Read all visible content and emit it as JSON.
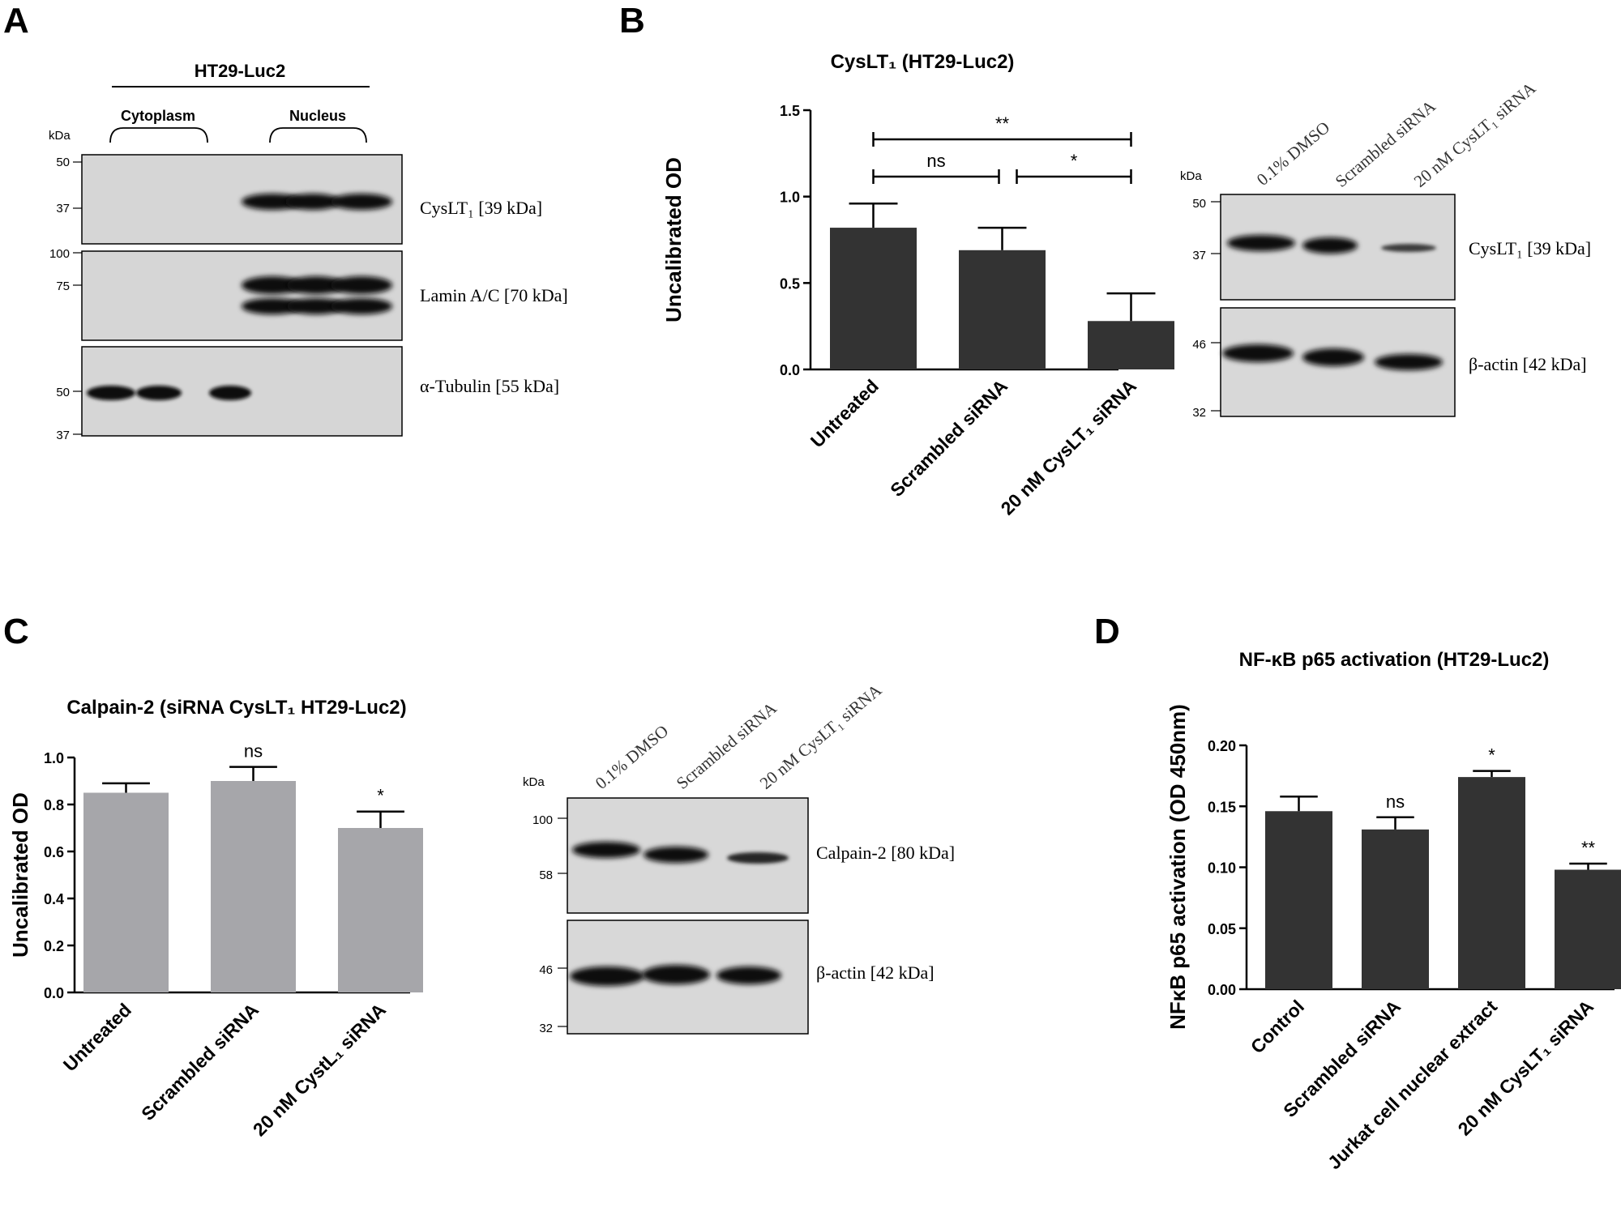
{
  "panels": {
    "a": {
      "label": "A",
      "cell_line": "HT29-Luc2",
      "fractions": [
        "Cytoplasm",
        "Nucleus"
      ],
      "kda_header": "kDa",
      "blots": [
        {
          "label": "CysLT₁ [39 kDa]",
          "markers": [
            "50",
            "37"
          ]
        },
        {
          "label": "Lamin A/C [70 kDa]",
          "markers": [
            "100",
            "75"
          ]
        },
        {
          "label": "α-Tubulin [55 kDa]",
          "markers": [
            "50",
            "37"
          ]
        }
      ]
    },
    "b": {
      "label": "B",
      "lanes": [
        "0.1% DMSO",
        "Scrambled siRNA",
        "20 nM CysLT₁ siRNA"
      ],
      "kda_header": "kDa",
      "blots": [
        {
          "label": "CysLT₁ [39 kDa]",
          "markers": [
            "50",
            "37"
          ]
        },
        {
          "label": "β-actin [42 kDa]",
          "markers": [
            "46",
            "32"
          ]
        }
      ]
    },
    "c": {
      "label": "C",
      "lanes": [
        "0.1% DMSO",
        "Scrambled siRNA",
        "20 nM CysLT₁ siRNA"
      ],
      "kda_header": "kDa",
      "blots": [
        {
          "label": "Calpain-2 [80 kDa]",
          "markers": [
            "100",
            "58"
          ]
        },
        {
          "label": "β-actin [42 kDa]",
          "markers": [
            "46",
            "32"
          ]
        }
      ]
    },
    "d": {
      "label": "D"
    }
  },
  "chart_data": [
    {
      "id": "b",
      "type": "bar",
      "title": "CysLT₁ (HT29-Luc2)",
      "ylabel": "Uncalibrated OD",
      "xlabel": "",
      "categories": [
        "Untreated",
        "Scrambled siRNA",
        "20 nM CysLT₁ siRNA"
      ],
      "values": [
        0.82,
        0.69,
        0.28
      ],
      "errors": [
        0.14,
        0.13,
        0.16
      ],
      "ylim": [
        0,
        1.5
      ],
      "yticks": [
        "0.0",
        "0.5",
        "1.0",
        "1.5"
      ],
      "bar_color": "#333333",
      "significance": [
        {
          "from": 0,
          "to": 2,
          "label": "**"
        },
        {
          "from": 0,
          "to": 1,
          "label": "ns"
        },
        {
          "from": 1,
          "to": 2,
          "label": "*"
        }
      ]
    },
    {
      "id": "c",
      "type": "bar",
      "title": "Calpain-2 (siRNA CysLT₁ HT29-Luc2)",
      "ylabel": "Uncalibrated OD",
      "xlabel": "",
      "categories": [
        "Untreated",
        "Scrambled siRNA",
        "20 nM CystL₁ siRNA"
      ],
      "values": [
        0.85,
        0.9,
        0.7
      ],
      "errors": [
        0.04,
        0.06,
        0.07
      ],
      "ylim": [
        0,
        1.0
      ],
      "yticks": [
        "0.0",
        "0.2",
        "0.4",
        "0.6",
        "0.8",
        "1.0"
      ],
      "bar_color": "#a6a6aa",
      "bar_labels": [
        "",
        "ns",
        "*"
      ]
    },
    {
      "id": "d",
      "type": "bar",
      "title": "NF-κB p65 activation (HT29-Luc2)",
      "ylabel": "NFκB p65 activation (OD 450nm)",
      "xlabel": "",
      "categories": [
        "Control",
        "Scrambled siRNA",
        "Jurkat cell nuclear extract",
        "20 nM CysLT₁ siRNA"
      ],
      "values": [
        0.146,
        0.131,
        0.174,
        0.098
      ],
      "errors": [
        0.012,
        0.01,
        0.005,
        0.005
      ],
      "ylim": [
        0,
        0.2
      ],
      "yticks": [
        "0.00",
        "0.05",
        "0.10",
        "0.15",
        "0.20"
      ],
      "bar_color": "#333333",
      "bar_labels": [
        "",
        "ns",
        "*",
        "**"
      ]
    }
  ]
}
